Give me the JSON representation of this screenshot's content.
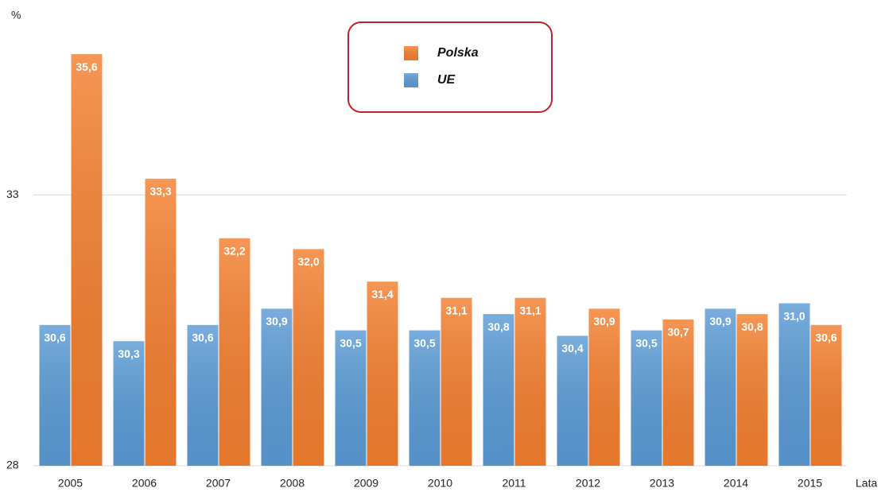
{
  "chart_data": {
    "type": "bar",
    "y_label": "%",
    "x_label": "Lata",
    "categories": [
      "2005",
      "2006",
      "2007",
      "2008",
      "2009",
      "2010",
      "2011",
      "2012",
      "2013",
      "2014",
      "2015"
    ],
    "series": [
      {
        "name": "UE",
        "color": "#5b9bd5",
        "values": [
          30.6,
          30.3,
          30.6,
          30.9,
          30.5,
          30.5,
          30.8,
          30.4,
          30.5,
          30.9,
          31.0
        ],
        "value_labels": [
          "30,6",
          "30,3",
          "30,6",
          "30,9",
          "30,5",
          "30,5",
          "30,8",
          "30,4",
          "30,5",
          "30,9",
          "31,0"
        ]
      },
      {
        "name": "Polska",
        "color": "#f47f2f",
        "values": [
          35.6,
          33.3,
          32.2,
          32.0,
          31.4,
          31.1,
          31.1,
          30.9,
          30.7,
          30.8,
          30.6
        ],
        "value_labels": [
          "35,6",
          "33,3",
          "32,2",
          "32,0",
          "31,4",
          "31,1",
          "31,1",
          "30,9",
          "30,7",
          "30,8",
          "30,6"
        ]
      }
    ],
    "legend_order": [
      "Polska",
      "UE"
    ],
    "legend": "top",
    "ylim": [
      28,
      36.6
    ],
    "yticks": [
      28,
      33
    ],
    "grid": true
  }
}
